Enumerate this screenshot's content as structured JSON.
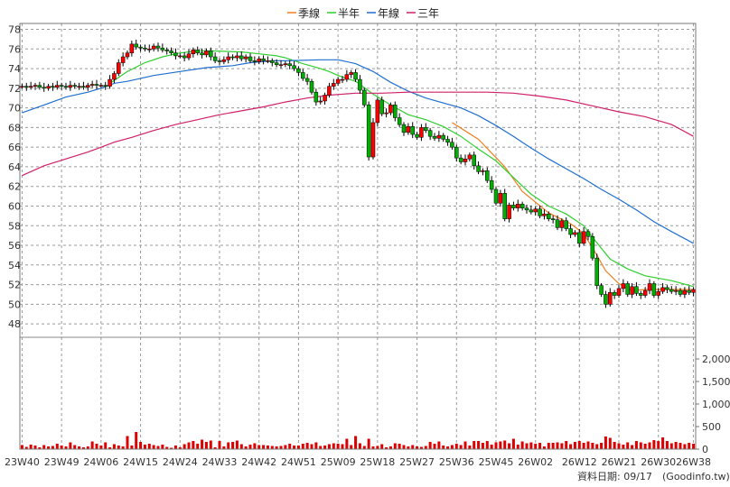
{
  "chart_data": {
    "type": "candlestick",
    "legend": {
      "position": "top-center",
      "items": [
        {
          "label": "季線",
          "color": "#f07f1f"
        },
        {
          "label": "半年",
          "color": "#2fcf2f"
        },
        {
          "label": "年線",
          "color": "#1f6fd0"
        },
        {
          "label": "三年",
          "color": "#d0206a"
        }
      ]
    },
    "price_axis": {
      "position": "left",
      "ylim": [
        47,
        78.6
      ],
      "ticks": [
        48,
        50,
        52,
        54,
        56,
        58,
        60,
        62,
        64,
        66,
        68,
        70,
        72,
        74,
        76,
        78
      ]
    },
    "volume_axis": {
      "position": "right",
      "ylim": [
        0,
        2400
      ],
      "ticks": [
        0,
        500,
        1000,
        1500,
        2000
      ],
      "tick_labels": [
        "0",
        "500",
        "1,000",
        "1,500",
        "2,000"
      ]
    },
    "x_labels": [
      "23W40",
      "23W49",
      "24W06",
      "24W15",
      "24W24",
      "24W33",
      "24W42",
      "24W51",
      "25W09",
      "25W18",
      "25W27",
      "25W36",
      "25W45",
      "26W02",
      "26W12",
      "26W21",
      "26W30",
      "26W38"
    ],
    "x_label_weeks": [
      0,
      9,
      18,
      27,
      36,
      45,
      54,
      63,
      72,
      81,
      90,
      99,
      108,
      117,
      127,
      136,
      145,
      153
    ],
    "weeks": 154,
    "grid": true,
    "candle_up_color": "#ff0000",
    "candle_down_color": "#00b000",
    "volume_color": "#dd0000",
    "close": [
      72.2,
      72.1,
      72.2,
      72.3,
      72.1,
      72.0,
      72.2,
      72.1,
      72.3,
      72.2,
      72.1,
      72.3,
      72.2,
      72.2,
      72.1,
      72.3,
      72.4,
      72.3,
      72.3,
      72.2,
      72.9,
      73.5,
      74.6,
      75.2,
      75.6,
      76.5,
      76.2,
      76.1,
      76.0,
      76.0,
      76.3,
      76.1,
      75.9,
      75.8,
      75.6,
      75.3,
      75.3,
      75.1,
      75.5,
      75.9,
      75.6,
      75.4,
      75.8,
      75.2,
      74.8,
      74.7,
      74.9,
      75.2,
      75.1,
      75.3,
      75.0,
      75.2,
      74.8,
      74.7,
      75.0,
      74.8,
      74.8,
      74.6,
      74.4,
      74.4,
      74.5,
      74.3,
      74.0,
      73.6,
      73.0,
      72.7,
      71.6,
      70.6,
      70.7,
      71.3,
      72.2,
      72.5,
      72.9,
      72.9,
      73.4,
      73.6,
      72.9,
      71.8,
      70.3,
      65.0,
      68.5,
      70.8,
      69.4,
      69.5,
      70.3,
      69.0,
      68.3,
      67.5,
      68.1,
      67.3,
      67.0,
      68.0,
      67.7,
      67.1,
      66.9,
      67.2,
      66.8,
      66.5,
      66.0,
      64.9,
      64.5,
      64.8,
      65.2,
      64.1,
      63.5,
      63.6,
      62.6,
      61.7,
      60.3,
      61.3,
      58.7,
      60.1,
      59.8,
      60.2,
      59.8,
      59.6,
      59.4,
      59.7,
      59.0,
      59.2,
      58.7,
      58.6,
      57.8,
      58.5,
      57.7,
      57.1,
      57.3,
      56.2,
      57.4,
      56.9,
      54.7,
      51.9,
      51.0,
      50.0,
      51.2,
      50.9,
      51.6,
      52.1,
      51.0,
      51.8,
      51.1,
      50.9,
      51.4,
      52.1,
      50.9,
      51.3,
      51.7,
      51.5,
      51.3,
      51.4,
      51.0,
      51.4,
      51.2,
      51.5
    ],
    "volume": [
      90,
      50,
      100,
      80,
      40,
      90,
      60,
      70,
      120,
      80,
      60,
      150,
      90,
      60,
      40,
      60,
      170,
      120,
      80,
      150,
      40,
      110,
      80,
      60,
      290,
      80,
      380,
      160,
      100,
      120,
      90,
      70,
      100,
      50,
      30,
      80,
      40,
      110,
      150,
      180,
      120,
      210,
      160,
      190,
      40,
      180,
      60,
      150,
      160,
      190,
      110,
      60,
      100,
      130,
      90,
      90,
      80,
      70,
      60,
      70,
      90,
      120,
      80,
      80,
      120,
      140,
      110,
      150,
      70,
      80,
      110,
      130,
      120,
      110,
      230,
      90,
      290,
      130,
      70,
      230,
      60,
      70,
      110,
      40,
      60,
      130,
      120,
      90,
      60,
      90,
      60,
      50,
      70,
      160,
      120,
      170,
      80,
      60,
      90,
      120,
      90,
      170,
      80,
      180,
      180,
      140,
      180,
      100,
      150,
      170,
      190,
      130,
      230,
      100,
      170,
      130,
      150,
      120,
      140,
      60,
      140,
      140,
      150,
      130,
      180,
      110,
      160,
      180,
      140,
      170,
      140,
      110,
      140,
      280,
      250,
      160,
      130,
      100,
      150,
      90,
      180,
      150,
      120,
      150,
      200,
      180,
      260,
      180,
      130,
      160,
      140,
      110,
      140,
      120
    ],
    "ma_quarter": [
      [
        98,
        68.5
      ],
      [
        104,
        66.8
      ],
      [
        110,
        64.0
      ],
      [
        114,
        61.5
      ],
      [
        120,
        59.3
      ],
      [
        125,
        58.2
      ],
      [
        128,
        57.2
      ],
      [
        131,
        55.0
      ],
      [
        133,
        53.4
      ],
      [
        136,
        52.1
      ],
      [
        139,
        51.4
      ],
      [
        142,
        51.5
      ],
      [
        146,
        51.5
      ],
      [
        150,
        51.5
      ],
      [
        153,
        51.5
      ]
    ],
    "ma_half": [
      [
        20,
        72.5
      ],
      [
        24,
        73.7
      ],
      [
        28,
        74.6
      ],
      [
        32,
        75.2
      ],
      [
        36,
        75.6
      ],
      [
        40,
        75.8
      ],
      [
        44,
        75.8
      ],
      [
        50,
        75.7
      ],
      [
        54,
        75.5
      ],
      [
        58,
        75.3
      ],
      [
        60,
        75.1
      ],
      [
        64,
        74.5
      ],
      [
        68,
        74.0
      ],
      [
        70,
        73.7
      ],
      [
        72,
        73.3
      ],
      [
        76,
        72.7
      ],
      [
        80,
        71.4
      ],
      [
        84,
        70.3
      ],
      [
        88,
        69.3
      ],
      [
        92,
        68.8
      ],
      [
        96,
        68.1
      ],
      [
        100,
        67.1
      ],
      [
        104,
        65.8
      ],
      [
        108,
        64.6
      ],
      [
        112,
        62.9
      ],
      [
        116,
        61.2
      ],
      [
        120,
        60.0
      ],
      [
        124,
        59.2
      ],
      [
        128,
        58.0
      ],
      [
        130,
        56.8
      ],
      [
        134,
        54.6
      ],
      [
        138,
        53.6
      ],
      [
        142,
        52.9
      ],
      [
        148,
        52.4
      ],
      [
        153,
        51.8
      ]
    ],
    "ma_year": [
      [
        0,
        69.5
      ],
      [
        5,
        70.3
      ],
      [
        10,
        71.1
      ],
      [
        15,
        71.6
      ],
      [
        18,
        72.0
      ],
      [
        21,
        72.5
      ],
      [
        24,
        72.7
      ],
      [
        30,
        73.3
      ],
      [
        36,
        73.7
      ],
      [
        42,
        74.1
      ],
      [
        48,
        74.3
      ],
      [
        52,
        74.6
      ],
      [
        57,
        74.8
      ],
      [
        60,
        74.8
      ],
      [
        68,
        74.9
      ],
      [
        72,
        74.9
      ],
      [
        76,
        74.5
      ],
      [
        80,
        73.7
      ],
      [
        84,
        72.6
      ],
      [
        88,
        71.7
      ],
      [
        92,
        71.0
      ],
      [
        96,
        70.5
      ],
      [
        100,
        70.0
      ],
      [
        104,
        69.2
      ],
      [
        108,
        68.2
      ],
      [
        112,
        67.1
      ],
      [
        116,
        65.9
      ],
      [
        120,
        64.8
      ],
      [
        124,
        63.8
      ],
      [
        128,
        62.8
      ],
      [
        132,
        61.7
      ],
      [
        136,
        60.7
      ],
      [
        140,
        59.6
      ],
      [
        144,
        58.4
      ],
      [
        148,
        57.4
      ],
      [
        153,
        56.2
      ]
    ],
    "ma_3year": [
      [
        0,
        63.1
      ],
      [
        5,
        64.1
      ],
      [
        10,
        64.8
      ],
      [
        15,
        65.5
      ],
      [
        18,
        66.0
      ],
      [
        21,
        66.5
      ],
      [
        25,
        67.0
      ],
      [
        30,
        67.7
      ],
      [
        35,
        68.3
      ],
      [
        40,
        68.8
      ],
      [
        45,
        69.3
      ],
      [
        50,
        69.7
      ],
      [
        55,
        70.1
      ],
      [
        60,
        70.6
      ],
      [
        65,
        71.0
      ],
      [
        70,
        71.3
      ],
      [
        76,
        71.5
      ],
      [
        82,
        71.5
      ],
      [
        88,
        71.6
      ],
      [
        94,
        71.6
      ],
      [
        100,
        71.6
      ],
      [
        106,
        71.6
      ],
      [
        112,
        71.5
      ],
      [
        118,
        71.2
      ],
      [
        124,
        70.8
      ],
      [
        130,
        70.2
      ],
      [
        136,
        69.6
      ],
      [
        142,
        69.1
      ],
      [
        148,
        68.3
      ],
      [
        153,
        67.1
      ]
    ]
  },
  "footer": {
    "date_label": "資料日期: 09/17",
    "source": "(Goodinfo.tw)"
  }
}
